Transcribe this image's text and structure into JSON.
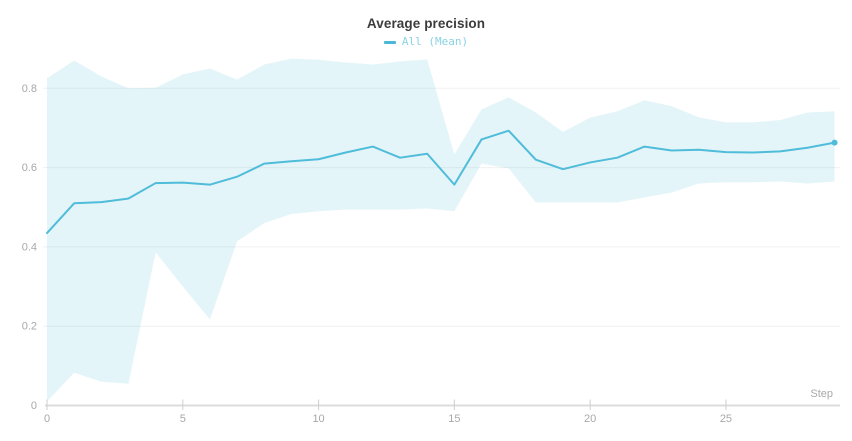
{
  "chart": {
    "title": "Average precision",
    "legend": {
      "label": "All (Mean)"
    },
    "x_axis_label": "Step"
  },
  "chart_data": {
    "type": "line",
    "title": "Average precision",
    "xlabel": "Step",
    "ylabel": "",
    "legend_position": "top",
    "grid": "horizontal",
    "xlim": [
      0,
      29.2
    ],
    "ylim": [
      0,
      0.9
    ],
    "x_ticks": [
      0,
      5,
      10,
      15,
      20,
      25
    ],
    "y_ticks": [
      0,
      0.2,
      0.4,
      0.6,
      0.8
    ],
    "colors": {
      "line": "#4fbcda",
      "band_base": "#56bfdb",
      "band_opacity": 0.16,
      "legend_dash": "#4bb8d8",
      "legend_text": "#8ad2e5",
      "gridline": "#f0f0f0",
      "axis_line": "#dcdcdc",
      "tick_mark": "#cfcfcf",
      "tick_label": "#a8a8a8",
      "title_text": "#3c3c3c"
    },
    "series": [
      {
        "name": "All (Mean)",
        "x": [
          0,
          1,
          2,
          3,
          4,
          5,
          6,
          7,
          8,
          9,
          10,
          11,
          12,
          13,
          14,
          15,
          16,
          17,
          18,
          19,
          20,
          21,
          22,
          23,
          24,
          25,
          26,
          27,
          28,
          29
        ],
        "values": [
          0.435,
          0.51,
          0.513,
          0.522,
          0.561,
          0.562,
          0.557,
          0.577,
          0.61,
          0.616,
          0.621,
          0.638,
          0.653,
          0.625,
          0.635,
          0.557,
          0.671,
          0.693,
          0.62,
          0.596,
          0.613,
          0.625,
          0.653,
          0.643,
          0.645,
          0.639,
          0.638,
          0.641,
          0.65,
          0.663
        ],
        "band_upper": [
          0.825,
          0.87,
          0.83,
          0.8,
          0.801,
          0.835,
          0.85,
          0.822,
          0.86,
          0.875,
          0.872,
          0.865,
          0.86,
          0.868,
          0.873,
          0.633,
          0.747,
          0.777,
          0.739,
          0.69,
          0.726,
          0.742,
          0.77,
          0.755,
          0.727,
          0.714,
          0.714,
          0.72,
          0.739,
          0.742
        ],
        "band_lower": [
          0.01,
          0.083,
          0.06,
          0.055,
          0.386,
          0.3,
          0.217,
          0.414,
          0.46,
          0.483,
          0.49,
          0.494,
          0.494,
          0.494,
          0.497,
          0.49,
          0.61,
          0.598,
          0.512,
          0.512,
          0.512,
          0.512,
          0.525,
          0.537,
          0.56,
          0.563,
          0.563,
          0.565,
          0.56,
          0.565
        ],
        "end_marker": true
      }
    ]
  }
}
